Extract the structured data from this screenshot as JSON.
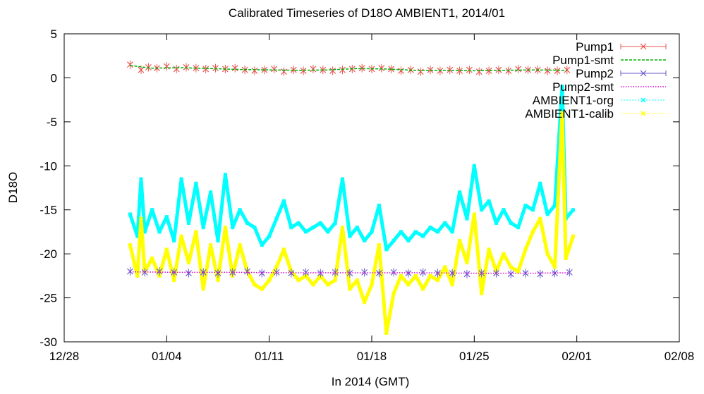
{
  "chart_data": {
    "type": "line",
    "title": "Calibrated Timeseries of D18O AMBIENT1, 2014/01",
    "xlabel": "In 2014 (GMT)",
    "ylabel": "D18O",
    "x_start": "2013-12-28",
    "x_end": "2014-02-08",
    "x_ticks": [
      {
        "date": "2013-12-28",
        "label": "12/28"
      },
      {
        "date": "2014-01-04",
        "label": "01/04"
      },
      {
        "date": "2014-01-11",
        "label": "01/11"
      },
      {
        "date": "2014-01-18",
        "label": "01/18"
      },
      {
        "date": "2014-01-25",
        "label": "01/25"
      },
      {
        "date": "2014-02-01",
        "label": "02/01"
      },
      {
        "date": "2014-02-08",
        "label": "02/08"
      }
    ],
    "ylim": [
      -30,
      5
    ],
    "y_ticks": [
      5,
      0,
      -5,
      -10,
      -15,
      -20,
      -25,
      -30
    ],
    "grid": false,
    "legend_position": "top-right",
    "series": [
      {
        "name": "Pump1",
        "color": "#e8554e",
        "marker": "x",
        "style": "errorbars",
        "points": [
          [
            "2014-01-01T12:00",
            1.5
          ],
          [
            "2014-01-02T06:00",
            0.9
          ],
          [
            "2014-01-02T18:00",
            1.2
          ],
          [
            "2014-01-03T08:00",
            1.1
          ],
          [
            "2014-01-04T00:00",
            1.3
          ],
          [
            "2014-01-04T16:00",
            1.0
          ],
          [
            "2014-01-05T08:00",
            1.2
          ],
          [
            "2014-01-06T00:00",
            1.1
          ],
          [
            "2014-01-06T16:00",
            1.0
          ],
          [
            "2014-01-07T08:00",
            1.1
          ],
          [
            "2014-01-08T00:00",
            1.0
          ],
          [
            "2014-01-08T16:00",
            1.1
          ],
          [
            "2014-01-09T08:00",
            0.9
          ],
          [
            "2014-01-10T00:00",
            0.8
          ],
          [
            "2014-01-10T16:00",
            0.9
          ],
          [
            "2014-01-11T08:00",
            1.0
          ],
          [
            "2014-01-12T00:00",
            0.7
          ],
          [
            "2014-01-12T16:00",
            0.9
          ],
          [
            "2014-01-13T08:00",
            0.8
          ],
          [
            "2014-01-14T00:00",
            1.0
          ],
          [
            "2014-01-14T16:00",
            0.9
          ],
          [
            "2014-01-15T08:00",
            0.8
          ],
          [
            "2014-01-16T00:00",
            0.9
          ],
          [
            "2014-01-16T16:00",
            1.0
          ],
          [
            "2014-01-17T08:00",
            1.1
          ],
          [
            "2014-01-18T00:00",
            1.0
          ],
          [
            "2014-01-18T16:00",
            1.1
          ],
          [
            "2014-01-19T08:00",
            1.0
          ],
          [
            "2014-01-20T00:00",
            0.8
          ],
          [
            "2014-01-20T16:00",
            0.9
          ],
          [
            "2014-01-21T08:00",
            0.7
          ],
          [
            "2014-01-22T00:00",
            0.9
          ],
          [
            "2014-01-22T16:00",
            0.8
          ],
          [
            "2014-01-23T08:00",
            0.9
          ],
          [
            "2014-01-24T00:00",
            0.8
          ],
          [
            "2014-01-24T16:00",
            0.9
          ],
          [
            "2014-01-25T08:00",
            0.7
          ],
          [
            "2014-01-26T00:00",
            0.8
          ],
          [
            "2014-01-26T16:00",
            0.9
          ],
          [
            "2014-01-27T08:00",
            0.8
          ],
          [
            "2014-01-28T00:00",
            1.0
          ],
          [
            "2014-01-28T16:00",
            0.9
          ],
          [
            "2014-01-29T08:00",
            0.9
          ],
          [
            "2014-01-30T00:00",
            0.8
          ],
          [
            "2014-01-30T16:00",
            0.8
          ],
          [
            "2014-01-31T08:00",
            0.9
          ]
        ]
      },
      {
        "name": "Pump1-smt",
        "color": "#00b000",
        "style": "dashed",
        "points": [
          [
            "2014-01-01T12:00",
            1.4
          ],
          [
            "2014-01-03T00:00",
            1.1
          ],
          [
            "2014-01-05T00:00",
            1.15
          ],
          [
            "2014-01-07T00:00",
            1.05
          ],
          [
            "2014-01-09T00:00",
            0.95
          ],
          [
            "2014-01-11T00:00",
            0.9
          ],
          [
            "2014-01-13T00:00",
            0.85
          ],
          [
            "2014-01-15T00:00",
            0.9
          ],
          [
            "2014-01-17T00:00",
            1.05
          ],
          [
            "2014-01-19T00:00",
            1.0
          ],
          [
            "2014-01-21T00:00",
            0.85
          ],
          [
            "2014-01-23T00:00",
            0.85
          ],
          [
            "2014-01-25T00:00",
            0.8
          ],
          [
            "2014-01-27T00:00",
            0.85
          ],
          [
            "2014-01-29T00:00",
            0.9
          ],
          [
            "2014-01-31T08:00",
            0.85
          ]
        ]
      },
      {
        "name": "Pump2",
        "color": "#6a5acd",
        "marker": "x",
        "style": "errorbars",
        "points": [
          [
            "2014-01-01T12:00",
            -22.0
          ],
          [
            "2014-01-02T12:00",
            -22.1
          ],
          [
            "2014-01-03T12:00",
            -22.0
          ],
          [
            "2014-01-04T12:00",
            -22.1
          ],
          [
            "2014-01-05T12:00",
            -22.2
          ],
          [
            "2014-01-06T12:00",
            -22.1
          ],
          [
            "2014-01-07T12:00",
            -22.2
          ],
          [
            "2014-01-08T12:00",
            -22.1
          ],
          [
            "2014-01-09T12:00",
            -22.0
          ],
          [
            "2014-01-10T12:00",
            -22.2
          ],
          [
            "2014-01-11T12:00",
            -22.1
          ],
          [
            "2014-01-12T12:00",
            -22.2
          ],
          [
            "2014-01-13T12:00",
            -22.1
          ],
          [
            "2014-01-14T12:00",
            -22.2
          ],
          [
            "2014-01-15T12:00",
            -22.1
          ],
          [
            "2014-01-16T12:00",
            -22.2
          ],
          [
            "2014-01-17T12:00",
            -22.1
          ],
          [
            "2014-01-18T12:00",
            -22.2
          ],
          [
            "2014-01-19T12:00",
            -22.1
          ],
          [
            "2014-01-20T12:00",
            -22.2
          ],
          [
            "2014-01-21T12:00",
            -22.1
          ],
          [
            "2014-01-22T12:00",
            -22.2
          ],
          [
            "2014-01-23T12:00",
            -22.2
          ],
          [
            "2014-01-24T12:00",
            -22.3
          ],
          [
            "2014-01-25T12:00",
            -22.2
          ],
          [
            "2014-01-26T12:00",
            -22.2
          ],
          [
            "2014-01-27T12:00",
            -22.3
          ],
          [
            "2014-01-28T12:00",
            -22.2
          ],
          [
            "2014-01-29T12:00",
            -22.3
          ],
          [
            "2014-01-30T12:00",
            -22.2
          ],
          [
            "2014-01-31T12:00",
            -22.1
          ]
        ]
      },
      {
        "name": "Pump2-smt",
        "color": "#d400d4",
        "style": "dotted",
        "points": [
          [
            "2014-01-01T12:00",
            -22.05
          ],
          [
            "2014-01-05T00:00",
            -22.1
          ],
          [
            "2014-01-09T00:00",
            -22.1
          ],
          [
            "2014-01-13T00:00",
            -22.15
          ],
          [
            "2014-01-17T00:00",
            -22.15
          ],
          [
            "2014-01-21T00:00",
            -22.15
          ],
          [
            "2014-01-25T00:00",
            -22.2
          ],
          [
            "2014-01-29T00:00",
            -22.2
          ],
          [
            "2014-01-31T12:00",
            -22.15
          ]
        ]
      },
      {
        "name": "AMBIENT1-org",
        "color": "#00ffff",
        "style": "points",
        "points": [
          [
            "2014-01-01T12:00",
            -15.5
          ],
          [
            "2014-01-02T00:00",
            -18.0
          ],
          [
            "2014-01-02T06:00",
            -11.5
          ],
          [
            "2014-01-02T12:00",
            -17.5
          ],
          [
            "2014-01-03T00:00",
            -15.0
          ],
          [
            "2014-01-03T12:00",
            -17.5
          ],
          [
            "2014-01-04T00:00",
            -15.8
          ],
          [
            "2014-01-04T12:00",
            -18.5
          ],
          [
            "2014-01-05T00:00",
            -11.5
          ],
          [
            "2014-01-05T12:00",
            -16.5
          ],
          [
            "2014-01-06T00:00",
            -12.0
          ],
          [
            "2014-01-06T12:00",
            -17.0
          ],
          [
            "2014-01-07T00:00",
            -13.0
          ],
          [
            "2014-01-07T12:00",
            -18.5
          ],
          [
            "2014-01-08T00:00",
            -11.0
          ],
          [
            "2014-01-08T12:00",
            -17.0
          ],
          [
            "2014-01-09T00:00",
            -15.0
          ],
          [
            "2014-01-09T12:00",
            -16.5
          ],
          [
            "2014-01-10T00:00",
            -17.0
          ],
          [
            "2014-01-10T12:00",
            -19.0
          ],
          [
            "2014-01-11T00:00",
            -18.0
          ],
          [
            "2014-01-11T12:00",
            -16.0
          ],
          [
            "2014-01-12T00:00",
            -14.0
          ],
          [
            "2014-01-12T12:00",
            -17.0
          ],
          [
            "2014-01-13T00:00",
            -16.5
          ],
          [
            "2014-01-13T12:00",
            -17.5
          ],
          [
            "2014-01-14T00:00",
            -17.0
          ],
          [
            "2014-01-14T12:00",
            -16.5
          ],
          [
            "2014-01-15T00:00",
            -17.5
          ],
          [
            "2014-01-15T12:00",
            -16.5
          ],
          [
            "2014-01-16T00:00",
            -11.5
          ],
          [
            "2014-01-16T12:00",
            -18.0
          ],
          [
            "2014-01-17T00:00",
            -17.0
          ],
          [
            "2014-01-17T12:00",
            -18.5
          ],
          [
            "2014-01-18T00:00",
            -17.5
          ],
          [
            "2014-01-18T12:00",
            -14.5
          ],
          [
            "2014-01-19T00:00",
            -19.5
          ],
          [
            "2014-01-19T12:00",
            -18.5
          ],
          [
            "2014-01-20T00:00",
            -17.5
          ],
          [
            "2014-01-20T12:00",
            -18.5
          ],
          [
            "2014-01-21T00:00",
            -17.5
          ],
          [
            "2014-01-21T12:00",
            -18.0
          ],
          [
            "2014-01-22T00:00",
            -17.0
          ],
          [
            "2014-01-22T12:00",
            -17.5
          ],
          [
            "2014-01-23T00:00",
            -16.5
          ],
          [
            "2014-01-23T12:00",
            -17.5
          ],
          [
            "2014-01-24T00:00",
            -13.0
          ],
          [
            "2014-01-24T12:00",
            -16.0
          ],
          [
            "2014-01-25T00:00",
            -10.0
          ],
          [
            "2014-01-25T12:00",
            -15.0
          ],
          [
            "2014-01-26T00:00",
            -14.0
          ],
          [
            "2014-01-26T12:00",
            -16.5
          ],
          [
            "2014-01-27T00:00",
            -15.0
          ],
          [
            "2014-01-27T12:00",
            -16.5
          ],
          [
            "2014-01-28T00:00",
            -17.0
          ],
          [
            "2014-01-28T12:00",
            -14.5
          ],
          [
            "2014-01-29T00:00",
            -15.0
          ],
          [
            "2014-01-29T12:00",
            -12.0
          ],
          [
            "2014-01-30T00:00",
            -15.5
          ],
          [
            "2014-01-30T12:00",
            -14.5
          ],
          [
            "2014-01-31T00:00",
            -1.0
          ],
          [
            "2014-01-31T06:00",
            -16.0
          ],
          [
            "2014-01-31T18:00",
            -15.0
          ]
        ]
      },
      {
        "name": "AMBIENT1-calib",
        "color": "#ffff00",
        "style": "points",
        "points": [
          [
            "2014-01-01T12:00",
            -19.0
          ],
          [
            "2014-01-02T00:00",
            -22.5
          ],
          [
            "2014-01-02T06:00",
            -16.0
          ],
          [
            "2014-01-02T12:00",
            -22.0
          ],
          [
            "2014-01-03T00:00",
            -20.5
          ],
          [
            "2014-01-03T12:00",
            -22.5
          ],
          [
            "2014-01-04T00:00",
            -19.5
          ],
          [
            "2014-01-04T12:00",
            -23.0
          ],
          [
            "2014-01-05T00:00",
            -18.0
          ],
          [
            "2014-01-05T12:00",
            -21.0
          ],
          [
            "2014-01-06T00:00",
            -17.5
          ],
          [
            "2014-01-06T12:00",
            -24.0
          ],
          [
            "2014-01-07T00:00",
            -19.0
          ],
          [
            "2014-01-07T12:00",
            -23.0
          ],
          [
            "2014-01-08T00:00",
            -17.0
          ],
          [
            "2014-01-08T12:00",
            -22.5
          ],
          [
            "2014-01-09T00:00",
            -19.0
          ],
          [
            "2014-01-09T12:00",
            -22.0
          ],
          [
            "2014-01-10T00:00",
            -23.5
          ],
          [
            "2014-01-10T12:00",
            -24.0
          ],
          [
            "2014-01-11T00:00",
            -23.0
          ],
          [
            "2014-01-11T12:00",
            -21.5
          ],
          [
            "2014-01-12T00:00",
            -19.5
          ],
          [
            "2014-01-12T12:00",
            -22.0
          ],
          [
            "2014-01-13T00:00",
            -23.0
          ],
          [
            "2014-01-13T12:00",
            -22.5
          ],
          [
            "2014-01-14T00:00",
            -23.5
          ],
          [
            "2014-01-14T12:00",
            -22.5
          ],
          [
            "2014-01-15T00:00",
            -23.5
          ],
          [
            "2014-01-15T12:00",
            -23.0
          ],
          [
            "2014-01-16T00:00",
            -17.0
          ],
          [
            "2014-01-16T12:00",
            -24.0
          ],
          [
            "2014-01-17T00:00",
            -23.0
          ],
          [
            "2014-01-17T12:00",
            -25.5
          ],
          [
            "2014-01-18T00:00",
            -23.5
          ],
          [
            "2014-01-18T12:00",
            -19.0
          ],
          [
            "2014-01-19T00:00",
            -29.0
          ],
          [
            "2014-01-19T12:00",
            -24.5
          ],
          [
            "2014-01-20T00:00",
            -22.5
          ],
          [
            "2014-01-20T12:00",
            -23.5
          ],
          [
            "2014-01-21T00:00",
            -22.5
          ],
          [
            "2014-01-21T12:00",
            -24.0
          ],
          [
            "2014-01-22T00:00",
            -22.5
          ],
          [
            "2014-01-22T12:00",
            -23.0
          ],
          [
            "2014-01-23T00:00",
            -21.5
          ],
          [
            "2014-01-23T12:00",
            -23.5
          ],
          [
            "2014-01-24T00:00",
            -18.5
          ],
          [
            "2014-01-24T12:00",
            -21.0
          ],
          [
            "2014-01-25T00:00",
            -15.5
          ],
          [
            "2014-01-25T12:00",
            -24.5
          ],
          [
            "2014-01-26T00:00",
            -19.5
          ],
          [
            "2014-01-26T12:00",
            -22.0
          ],
          [
            "2014-01-27T00:00",
            -20.0
          ],
          [
            "2014-01-27T12:00",
            -21.5
          ],
          [
            "2014-01-28T00:00",
            -22.0
          ],
          [
            "2014-01-28T12:00",
            -19.5
          ],
          [
            "2014-01-29T00:00",
            -17.5
          ],
          [
            "2014-01-29T12:00",
            -16.0
          ],
          [
            "2014-01-30T00:00",
            -20.0
          ],
          [
            "2014-01-30T12:00",
            -21.5
          ],
          [
            "2014-01-31T00:00",
            -4.0
          ],
          [
            "2014-01-31T06:00",
            -20.5
          ],
          [
            "2014-01-31T18:00",
            -18.0
          ]
        ]
      }
    ]
  }
}
